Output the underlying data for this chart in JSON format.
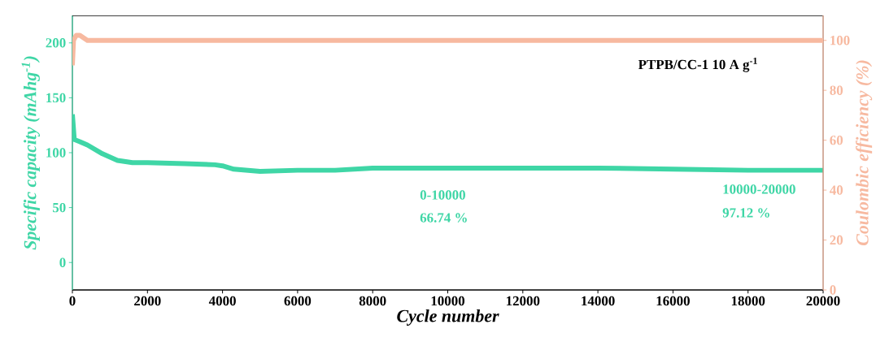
{
  "chart_data": {
    "type": "line",
    "xlabel": "Cycle number",
    "ylabel": "Specific capacity (mAhg$^{-1}$)",
    "y2label": "Coulombic efficiency (%)",
    "annotations": [
      "PTPB/CC-1   10 A g$^{-1}$",
      "0-10000",
      "66.74 %",
      "10000-20000",
      "97.12 %"
    ],
    "xlim": [
      0,
      20000
    ],
    "xticks": [
      0,
      2000,
      4000,
      6000,
      8000,
      10000,
      12000,
      14000,
      16000,
      18000,
      20000
    ],
    "ylim": [
      -25,
      225
    ],
    "yticks": [
      0,
      50,
      100,
      150,
      200
    ],
    "y2lim": [
      0,
      110
    ],
    "y2ticks": [
      0,
      20,
      40,
      60,
      80,
      100
    ],
    "grid": false,
    "marker": "none",
    "series": [
      {
        "color": "#3fd6a6",
        "x": [
          0,
          50,
          200,
          400,
          800,
          1200,
          1600,
          2000,
          3000,
          3800,
          4000,
          4300,
          5000,
          6000,
          7000,
          8000,
          10000,
          12000,
          14000,
          16000,
          18000,
          19000,
          20000
        ],
        "values": [
          135,
          112,
          110,
          107,
          99,
          93,
          91,
          91,
          90,
          89,
          88,
          85,
          83,
          84,
          84,
          86,
          86,
          86,
          86,
          85,
          84,
          84,
          84
        ]
      },
      {
        "color": "#f7b9a0",
        "axis": "y2",
        "x": [
          0,
          30,
          100,
          200,
          400,
          1000,
          5000,
          10000,
          15000,
          20000
        ],
        "values": [
          90,
          100,
          102,
          102,
          100,
          100,
          100,
          100,
          100,
          100
        ]
      }
    ]
  }
}
